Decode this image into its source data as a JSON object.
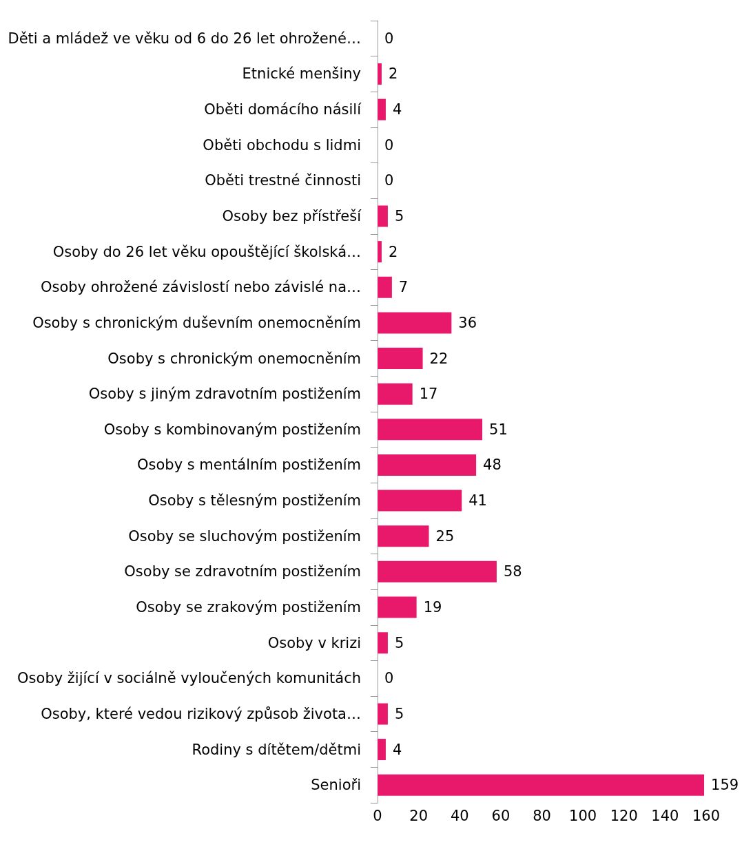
{
  "chart_data": {
    "type": "bar",
    "orientation": "horizontal",
    "categories": [
      "Děti a mládež ve věku od 6 do 26 let ohrožené…",
      "Etnické menšiny",
      "Oběti domácího násilí",
      "Oběti obchodu s lidmi",
      "Oběti trestné činnosti",
      "Osoby bez přístřeší",
      "Osoby do 26 let věku opouštějící školská…",
      "Osoby ohrožené závislostí nebo závislé na…",
      "Osoby s chronickým duševním onemocněním",
      "Osoby s chronickým onemocněním",
      "Osoby s jiným zdravotním postižením",
      "Osoby s kombinovaným postižením",
      "Osoby s mentálním postižením",
      "Osoby s tělesným postižením",
      "Osoby se sluchovým postižením",
      "Osoby se zdravotním postižením",
      "Osoby se zrakovým postižením",
      "Osoby v krizi",
      "Osoby žijící v sociálně vyloučených komunitách",
      "Osoby, které vedou rizikový způsob života…",
      "Rodiny s dítětem/dětmi",
      "Senioři"
    ],
    "values": [
      0,
      2,
      4,
      0,
      0,
      5,
      2,
      7,
      36,
      22,
      17,
      51,
      48,
      41,
      25,
      58,
      19,
      5,
      0,
      5,
      4,
      159
    ],
    "color": "#e8186b",
    "xlim": [
      0,
      160
    ],
    "xticks": [
      0,
      20,
      40,
      60,
      80,
      100,
      120,
      140,
      160
    ],
    "grid": false,
    "data_labels": true
  }
}
